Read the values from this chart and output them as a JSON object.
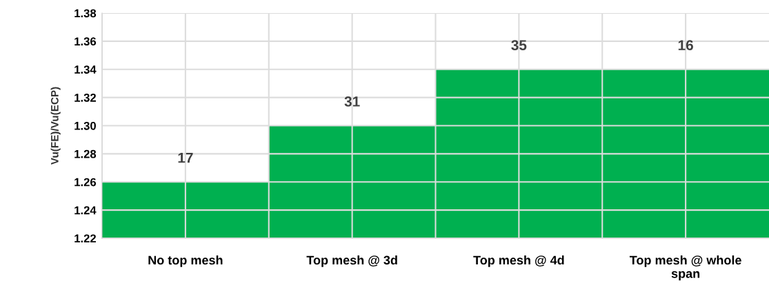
{
  "chart_data": {
    "type": "bar",
    "ylabel": "Vu(FE)/Vu(ECP)",
    "categories": [
      "No top mesh",
      "Top mesh @ 3d",
      "Top mesh @ 4d",
      "Top mesh @ whole span"
    ],
    "values": [
      1.26,
      1.3,
      1.34,
      1.34
    ],
    "color": "#00b050",
    "ylim": [
      1.22,
      1.38
    ],
    "yticks": [
      {
        "value": 1.22,
        "label": "1.22"
      },
      {
        "value": 1.24,
        "label": "1.24"
      },
      {
        "value": 1.26,
        "label": "1.26"
      },
      {
        "value": 1.28,
        "label": "1.28"
      },
      {
        "value": 1.3,
        "label": "1.30"
      },
      {
        "value": 1.32,
        "label": "1.32"
      },
      {
        "value": 1.34,
        "label": "1.34"
      },
      {
        "value": 1.36,
        "label": "1.36"
      },
      {
        "value": 1.38,
        "label": "1.38"
      }
    ],
    "grid": true,
    "annotations": [
      "17",
      "31",
      "35",
      "16"
    ]
  }
}
